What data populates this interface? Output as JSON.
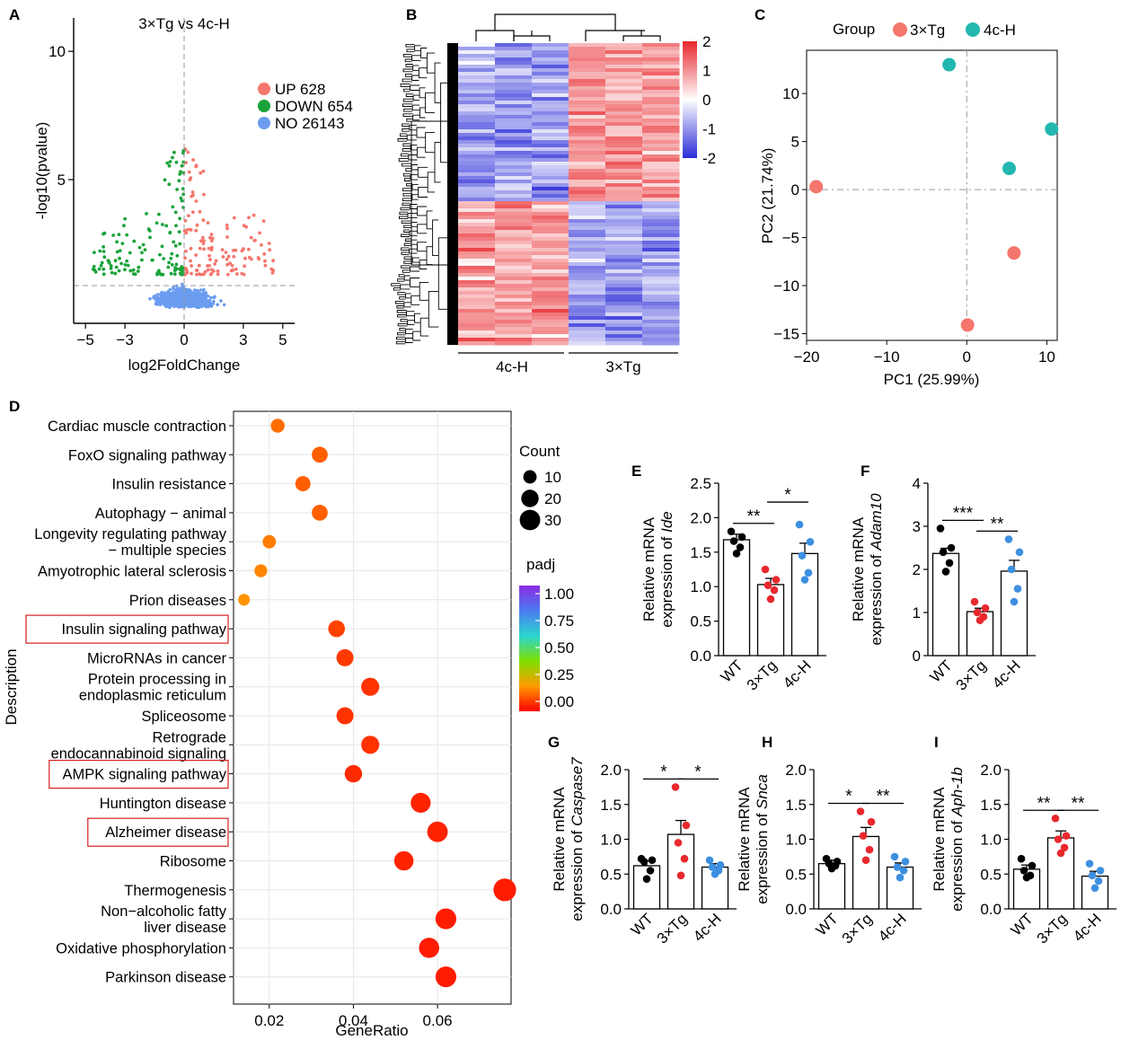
{
  "figure_panels": [
    "A",
    "B",
    "C",
    "D",
    "E",
    "F",
    "G",
    "H",
    "I"
  ],
  "chart_data": [
    {
      "panel": "A",
      "type": "scatter",
      "title": "3×Tg vs 4c-H",
      "xlabel": "log2FoldChange",
      "ylabel": "-log10(pvalue)",
      "xlim": [
        -5.6,
        5.6
      ],
      "ylim": [
        -0.6,
        11.3
      ],
      "x_ticks": [
        -5,
        -3,
        0,
        3,
        5
      ],
      "y_ticks": [
        5,
        10
      ],
      "x_tick_labels": [
        "−5",
        "−3",
        "0",
        "3",
        "5"
      ],
      "y_tick_labels": [
        "5",
        "10"
      ],
      "threshold_pvalue_line": 1.3,
      "threshold_fc_line": 0,
      "legend": [
        {
          "label": "UP 628",
          "color": "#f4766d"
        },
        {
          "label": "DOWN 654",
          "color": "#1aa33a"
        },
        {
          "label": "NO 26143",
          "color": "#6b9cf0"
        }
      ],
      "colors": {
        "up": "#f4766d",
        "down": "#1aa33a",
        "no": "#6b9cf0"
      },
      "counts": {
        "up": 628,
        "down": 654,
        "no": 26143
      }
    },
    {
      "panel": "B",
      "type": "heatmap",
      "groups": [
        "4c-H",
        "3×Tg"
      ],
      "samples_per_group": 3,
      "scale_ticks": [
        2,
        1,
        0,
        -1,
        -2
      ],
      "scale_tick_labels": [
        "2",
        "1",
        "0",
        "-1",
        "-2"
      ],
      "colors": {
        "high": "#e8262b",
        "mid": "#ffffff",
        "low": "#2b2bd8"
      }
    },
    {
      "panel": "C",
      "type": "scatter",
      "legend_title": "Group",
      "xlabel": "PC1 (25.99%)",
      "ylabel": "PC2 (21.74%)",
      "xlim": [
        -20,
        11.3
      ],
      "ylim": [
        -15.7,
        14.5
      ],
      "x_ticks": [
        -20,
        -10,
        0,
        10
      ],
      "y_ticks": [
        -15,
        -10,
        -5,
        0,
        5,
        10
      ],
      "x_tick_labels": [
        "−20",
        "−10",
        "0",
        "10"
      ],
      "y_tick_labels": [
        "−15",
        "−10",
        "−5",
        "0",
        "5",
        "10"
      ],
      "series": [
        {
          "name": "3×Tg",
          "color": "#f4766d",
          "points": [
            [
              -18.8,
              0.3
            ],
            [
              5.9,
              -6.6
            ],
            [
              0.1,
              -14.1
            ]
          ]
        },
        {
          "name": "4c-H",
          "color": "#22b8b0",
          "points": [
            [
              -2.2,
              13.0
            ],
            [
              10.6,
              6.3
            ],
            [
              5.3,
              2.2
            ]
          ]
        }
      ]
    },
    {
      "panel": "D",
      "type": "scatter",
      "xlabel": "GeneRatio",
      "ylabel": "Description",
      "xlim": [
        0.0115,
        0.0775
      ],
      "x_ticks": [
        0.02,
        0.04,
        0.06
      ],
      "x_tick_labels": [
        "0.02",
        "0.04",
        "0.06"
      ],
      "categories": [
        [
          "Cardiac muscle contraction"
        ],
        [
          "FoxO signaling pathway"
        ],
        [
          "Insulin resistance"
        ],
        [
          "Autophagy − animal"
        ],
        [
          "Longevity regulating pathway",
          "− multiple species"
        ],
        [
          "Amyotrophic lateral sclerosis"
        ],
        [
          "Prion diseases"
        ],
        [
          "Insulin signaling pathway"
        ],
        [
          "MicroRNAs in cancer"
        ],
        [
          "Protein processing in",
          "endoplasmic reticulum"
        ],
        [
          "Spliceosome"
        ],
        [
          "Retrograde",
          "endocannabinoid signaling"
        ],
        [
          "AMPK signaling pathway"
        ],
        [
          "Huntington disease"
        ],
        [
          "Alzheimer disease"
        ],
        [
          "Ribosome"
        ],
        [
          "Thermogenesis"
        ],
        [
          "Non−alcoholic fatty",
          "liver disease"
        ],
        [
          "Oxidative phosphorylation"
        ],
        [
          "Parkinson disease"
        ]
      ],
      "highlighted": [
        "Insulin signaling pathway",
        "AMPK signaling pathway",
        "Alzheimer disease"
      ],
      "gene_ratio": [
        0.022,
        0.032,
        0.028,
        0.032,
        0.02,
        0.018,
        0.014,
        0.036,
        0.038,
        0.044,
        0.038,
        0.044,
        0.04,
        0.056,
        0.06,
        0.052,
        0.076,
        0.062,
        0.058,
        0.062
      ],
      "count": [
        11,
        16,
        14,
        16,
        10,
        9,
        7,
        18,
        19,
        22,
        19,
        22,
        20,
        28,
        30,
        26,
        38,
        31,
        29,
        31
      ],
      "padj": [
        0.12,
        0.1,
        0.1,
        0.1,
        0.14,
        0.15,
        0.17,
        0.06,
        0.05,
        0.04,
        0.04,
        0.04,
        0.03,
        0.02,
        0.02,
        0.02,
        0.01,
        0.01,
        0.01,
        0.01
      ],
      "count_legend_title": "Count",
      "count_legend": [
        10,
        20,
        30
      ],
      "padj_legend_title": "padj",
      "padj_ticks": [
        "1.00",
        "0.75",
        "0.50",
        "0.25",
        "0.00"
      ]
    },
    {
      "panel": "E",
      "type": "bar",
      "categories": [
        "WT",
        "3×Tg",
        "4c-H"
      ],
      "values": [
        1.68,
        1.03,
        1.48
      ],
      "sem": [
        0.08,
        0.09,
        0.15
      ],
      "points": [
        [
          1.8,
          1.72,
          1.66,
          1.57,
          1.48
        ],
        [
          1.25,
          1.1,
          1.02,
          0.95,
          0.82
        ],
        [
          1.9,
          1.65,
          1.45,
          1.2,
          1.1
        ]
      ],
      "ylabel": "Relative mRNA",
      "ylabel_prefix": "expression of ",
      "gene": "Ide",
      "ylim": [
        0,
        2.5
      ],
      "y_ticks": [
        "0.0",
        "0.5",
        "1.0",
        "1.5",
        "2.0",
        "2.5"
      ],
      "significance": [
        {
          "pair": [
            0,
            1
          ],
          "label": "**"
        },
        {
          "pair": [
            1,
            2
          ],
          "label": "*"
        }
      ],
      "colors": [
        "#000000",
        "#e8282d",
        "#3d8fe0"
      ]
    },
    {
      "panel": "F",
      "type": "bar",
      "categories": [
        "WT",
        "3×Tg",
        "4c-H"
      ],
      "values": [
        2.37,
        1.02,
        1.96
      ],
      "sem": [
        0.12,
        0.08,
        0.25
      ],
      "points": [
        [
          2.95,
          2.5,
          2.4,
          2.15,
          1.95
        ],
        [
          1.25,
          1.1,
          1.0,
          0.9,
          0.82
        ],
        [
          2.7,
          2.4,
          2.0,
          1.55,
          1.25
        ]
      ],
      "ylabel": "Relative mRNA",
      "ylabel_prefix": "expression of ",
      "gene": "Adam10",
      "ylim": [
        0,
        4
      ],
      "y_ticks": [
        "0",
        "1",
        "2",
        "3",
        "4"
      ],
      "significance": [
        {
          "pair": [
            0,
            1
          ],
          "label": "***"
        },
        {
          "pair": [
            1,
            2
          ],
          "label": "**"
        }
      ],
      "colors": [
        "#000000",
        "#e8282d",
        "#3d8fe0"
      ]
    },
    {
      "panel": "G",
      "type": "bar",
      "categories": [
        "WT",
        "3×Tg",
        "4c-H"
      ],
      "values": [
        0.62,
        1.07,
        0.6
      ],
      "sem": [
        0.07,
        0.2,
        0.05
      ],
      "points": [
        [
          0.72,
          0.7,
          0.68,
          0.55,
          0.43
        ],
        [
          1.75,
          1.2,
          0.95,
          0.72,
          0.48
        ],
        [
          0.7,
          0.63,
          0.6,
          0.55,
          0.5
        ]
      ],
      "ylabel": "Relative mRNA",
      "ylabel_prefix": "expression of ",
      "gene": "Caspase7",
      "ylim": [
        0,
        2
      ],
      "y_ticks": [
        "0.0",
        "0.5",
        "1.0",
        "1.5",
        "2.0"
      ],
      "significance": [
        {
          "pair": [
            0,
            1
          ],
          "label": "*"
        },
        {
          "pair": [
            1,
            2
          ],
          "label": "*"
        }
      ],
      "colors": [
        "#000000",
        "#e8282d",
        "#3d8fe0"
      ]
    },
    {
      "panel": "H",
      "type": "bar",
      "categories": [
        "WT",
        "3×Tg",
        "4c-H"
      ],
      "values": [
        0.65,
        1.04,
        0.6
      ],
      "sem": [
        0.05,
        0.13,
        0.06
      ],
      "points": [
        [
          0.72,
          0.68,
          0.65,
          0.62,
          0.58
        ],
        [
          1.4,
          1.25,
          1.05,
          0.85,
          0.7
        ],
        [
          0.75,
          0.68,
          0.6,
          0.55,
          0.45
        ]
      ],
      "ylabel": "Relative mRNA",
      "ylabel_prefix": "expression of ",
      "gene": "Snca",
      "ylim": [
        0,
        2
      ],
      "y_ticks": [
        "0.0",
        "0.5",
        "1.0",
        "1.5",
        "2.0"
      ],
      "significance": [
        {
          "pair": [
            0,
            1
          ],
          "label": "*"
        },
        {
          "pair": [
            1,
            2
          ],
          "label": "**"
        }
      ],
      "colors": [
        "#000000",
        "#e8282d",
        "#3d8fe0"
      ]
    },
    {
      "panel": "I",
      "type": "bar",
      "categories": [
        "WT",
        "3×Tg",
        "4c-H"
      ],
      "values": [
        0.57,
        1.02,
        0.47
      ],
      "sem": [
        0.06,
        0.1,
        0.07
      ],
      "points": [
        [
          0.72,
          0.62,
          0.55,
          0.48,
          0.45
        ],
        [
          1.3,
          1.05,
          1.0,
          0.88,
          0.8
        ],
        [
          0.65,
          0.55,
          0.48,
          0.4,
          0.3
        ]
      ],
      "ylabel": "Relative mRNA",
      "ylabel_prefix": "expression of ",
      "gene": "Aph-1b",
      "ylim": [
        0,
        2
      ],
      "y_ticks": [
        "0.0",
        "0.5",
        "1.0",
        "1.5",
        "2.0"
      ],
      "significance": [
        {
          "pair": [
            0,
            1
          ],
          "label": "**"
        },
        {
          "pair": [
            1,
            2
          ],
          "label": "**"
        }
      ],
      "colors": [
        "#000000",
        "#e8282d",
        "#3d8fe0"
      ]
    }
  ]
}
